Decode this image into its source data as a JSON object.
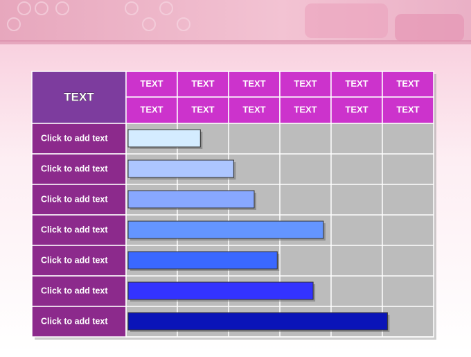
{
  "table": {
    "title": "TEXT",
    "header_rows": [
      [
        "TEXT",
        "TEXT",
        "TEXT",
        "TEXT",
        "TEXT",
        "TEXT"
      ],
      [
        "TEXT",
        "TEXT",
        "TEXT",
        "TEXT",
        "TEXT",
        "TEXT"
      ]
    ],
    "rows": [
      "Click to add text",
      "Click to add text",
      "Click to add text",
      "Click to add text",
      "Click to add text",
      "Click to add text",
      "Click to add text"
    ],
    "bars": {
      "values": [
        1.45,
        2.1,
        2.5,
        3.85,
        2.95,
        3.65,
        5.1
      ],
      "colors": [
        "#d4ecff",
        "#adc6ff",
        "#88a8ff",
        "#6495ff",
        "#3a68ff",
        "#3333ff",
        "#0a14b8"
      ]
    }
  }
}
